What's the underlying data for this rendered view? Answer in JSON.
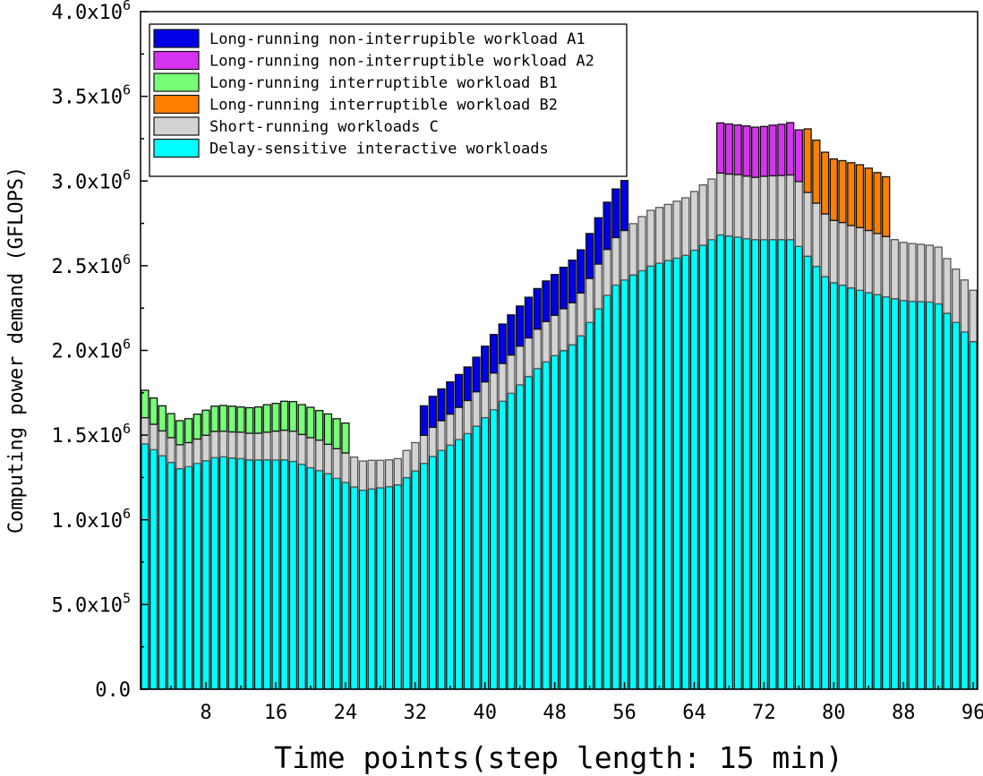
{
  "chart_data": {
    "type": "bar",
    "stacked": true,
    "xlabel": "Time points(step length: 15 min)",
    "ylabel": "Computing power demand (GFLOPS)",
    "xlim": [
      0.5,
      96.5
    ],
    "ylim": [
      0,
      4000000
    ],
    "x_ticks": [
      8,
      16,
      24,
      32,
      40,
      48,
      56,
      64,
      72,
      80,
      88,
      96
    ],
    "y_ticks": [
      {
        "value": 0,
        "mantissa": "0.0",
        "exponent": ""
      },
      {
        "value": 500000,
        "mantissa": "5.0x10",
        "exponent": "5"
      },
      {
        "value": 1000000,
        "mantissa": "1.0x10",
        "exponent": "6"
      },
      {
        "value": 1500000,
        "mantissa": "1.5x10",
        "exponent": "6"
      },
      {
        "value": 2000000,
        "mantissa": "2.0x10",
        "exponent": "6"
      },
      {
        "value": 2500000,
        "mantissa": "2.5x10",
        "exponent": "6"
      },
      {
        "value": 3000000,
        "mantissa": "3.0x10",
        "exponent": "6"
      },
      {
        "value": 3500000,
        "mantissa": "3.5x10",
        "exponent": "6"
      },
      {
        "value": 4000000,
        "mantissa": "4.0x10",
        "exponent": "6"
      }
    ],
    "grid": false,
    "legend_position": "top-left",
    "legend_order": [
      "A1",
      "A2",
      "B1",
      "B2",
      "C",
      "D"
    ],
    "series": [
      {
        "key": "D",
        "name": "Delay-sensitive interactive workloads",
        "color": "#00FFFF",
        "x_from": 1,
        "values": [
          1448000.0,
          1414000.0,
          1378000.0,
          1339000.0,
          1302000.0,
          1314000.0,
          1333000.0,
          1349000.0,
          1367000.0,
          1372000.0,
          1365000.0,
          1361000.0,
          1354000.0,
          1354000.0,
          1354000.0,
          1354000.0,
          1354000.0,
          1345000.0,
          1328000.0,
          1308000.0,
          1291000.0,
          1272000.0,
          1245000.0,
          1220000.0,
          1194000.0,
          1175000.0,
          1182000.0,
          1189000.0,
          1196000.0,
          1206000.0,
          1249000.0,
          1289000.0,
          1333000.0,
          1374000.0,
          1409000.0,
          1441000.0,
          1474000.0,
          1509000.0,
          1553000.0,
          1603000.0,
          1650000.0,
          1700000.0,
          1747000.0,
          1797000.0,
          1846000.0,
          1893000.0,
          1932000.0,
          1969000.0,
          1999000.0,
          2033000.0,
          2086000.0,
          2165000.0,
          2246000.0,
          2325000.0,
          2386000.0,
          2416000.0,
          2445000.0,
          2471000.0,
          2498000.0,
          2515000.0,
          2531000.0,
          2545000.0,
          2561000.0,
          2592000.0,
          2621000.0,
          2654000.0,
          2682000.0,
          2676000.0,
          2669000.0,
          2660000.0,
          2654000.0,
          2654000.0,
          2654000.0,
          2654000.0,
          2654000.0,
          2614000.0,
          2556000.0,
          2496000.0,
          2436000.0,
          2399000.0,
          2385000.0,
          2369000.0,
          2355000.0,
          2341000.0,
          2329000.0,
          2316000.0,
          2305000.0,
          2295000.0,
          2290000.0,
          2288000.0,
          2286000.0,
          2275000.0,
          2219000.0,
          2165000.0,
          2109000.0,
          2052000.0
        ]
      },
      {
        "key": "C",
        "name": "Short-running workloads C",
        "color": "#D3D3D3",
        "x_from": 1,
        "values": [
          155000.0,
          150000.0,
          147000.0,
          146000.0,
          141000.0,
          142000.0,
          144000.0,
          150000.0,
          155000.0,
          151000.0,
          154000.0,
          156000.0,
          157000.0,
          157000.0,
          163000.0,
          169000.0,
          175000.0,
          178000.0,
          176000.0,
          177000.0,
          179000.0,
          174000.0,
          175000.0,
          175000.0,
          176000.0,
          172000.0,
          169000.0,
          162000.0,
          158000.0,
          155000.0,
          160000.0,
          167000.0,
          166000.0,
          172000.0,
          176000.0,
          183000.0,
          190000.0,
          195000.0,
          203000.0,
          211000.0,
          216000.0,
          223000.0,
          226000.0,
          228000.0,
          228000.0,
          232000.0,
          238000.0,
          238000.0,
          247000.0,
          248000.0,
          253000.0,
          260000.0,
          264000.0,
          271000.0,
          280000.0,
          292000.0,
          303000.0,
          319000.0,
          329000.0,
          329000.0,
          331000.0,
          336000.0,
          340000.0,
          346000.0,
          356000.0,
          358000.0,
          365000.0,
          365000.0,
          369000.0,
          369000.0,
          368000.0,
          374000.0,
          377000.0,
          379000.0,
          382000.0,
          383000.0,
          377000.0,
          373000.0,
          370000.0,
          368000.0,
          370000.0,
          368000.0,
          370000.0,
          367000.0,
          361000.0,
          356000.0,
          349000.0,
          343000.0,
          341000.0,
          338000.0,
          335000.0,
          335000.0,
          323000.0,
          315000.0,
          307000.0,
          303000.0
        ]
      },
      {
        "key": "A1",
        "name": "Long-running non-interrupible workload A1",
        "color": "#0000E8",
        "x_from": 33,
        "values": [
          174000.0,
          183000.0,
          188000.0,
          190000.0,
          194000.0,
          198000.0,
          204000.0,
          211000.0,
          228000.0,
          233000.0,
          237000.0,
          237000.0,
          240000.0,
          240000.0,
          240000.0,
          241000.0,
          245000.0,
          252000.0,
          255000.0,
          265000.0,
          273000.0,
          279000.0,
          287000.0,
          295000.0
        ]
      },
      {
        "key": "A2",
        "name": "Long-running non-interruptible workload A2",
        "color": "#D633F0",
        "x_from": 67,
        "values": [
          296000.0,
          296000.0,
          293000.0,
          296000.0,
          296000.0,
          294000.0,
          299000.0,
          302000.0,
          309000.0,
          305000.0
        ]
      },
      {
        "key": "B1",
        "name": "Long-running interruptible workload B1",
        "color": "#77FF77",
        "x_from": 1,
        "values": [
          162000.0,
          155000.0,
          148000.0,
          142000.0,
          142000.0,
          141000.0,
          147000.0,
          148000.0,
          149000.0,
          152000.0,
          152000.0,
          149000.0,
          151000.0,
          155000.0,
          162000.0,
          164000.0,
          171000.0,
          175000.0,
          176000.0,
          179000.0,
          175000.0,
          179000.0,
          177000.0,
          176000.0
        ]
      },
      {
        "key": "B2",
        "name": "Long-running interruptible workload B2",
        "color": "#FF8000",
        "x_from": 77,
        "values": [
          375000.0,
          372000.0,
          364000.0,
          363000.0,
          365000.0,
          371000.0,
          371000.0,
          368000.0,
          360000.0,
          353000.0
        ]
      }
    ]
  }
}
